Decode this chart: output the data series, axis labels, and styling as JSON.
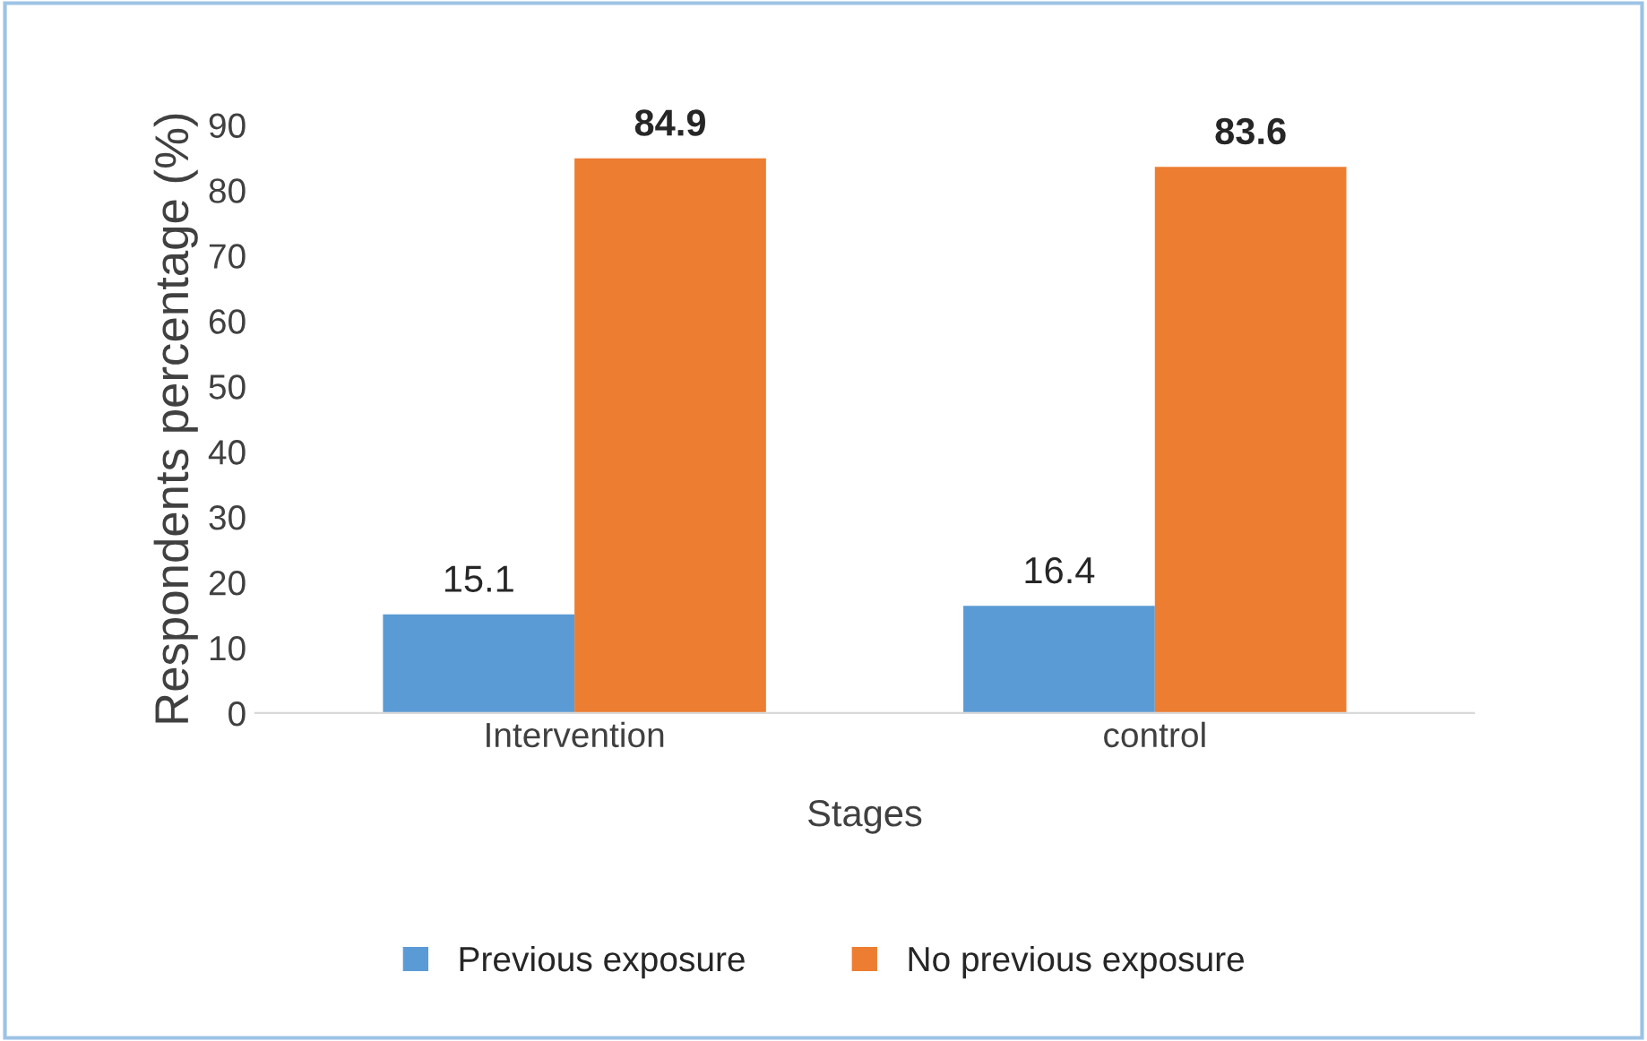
{
  "chart_data": {
    "type": "bar",
    "categories": [
      "Intervention",
      "control"
    ],
    "series": [
      {
        "name": "Previous exposure",
        "color": "#5b9bd5",
        "values": [
          15.1,
          16.4
        ]
      },
      {
        "name": "No previous exposure",
        "color": "#ed7d31",
        "values": [
          84.9,
          83.6
        ]
      }
    ],
    "xlabel": "Stages",
    "ylabel": "Respondents percentage (%)",
    "ylim": [
      0,
      90
    ],
    "yticks": [
      0,
      10,
      20,
      30,
      40,
      50,
      60,
      70,
      80,
      90
    ],
    "data_labels": true,
    "legend": "bottom",
    "grid": false
  }
}
